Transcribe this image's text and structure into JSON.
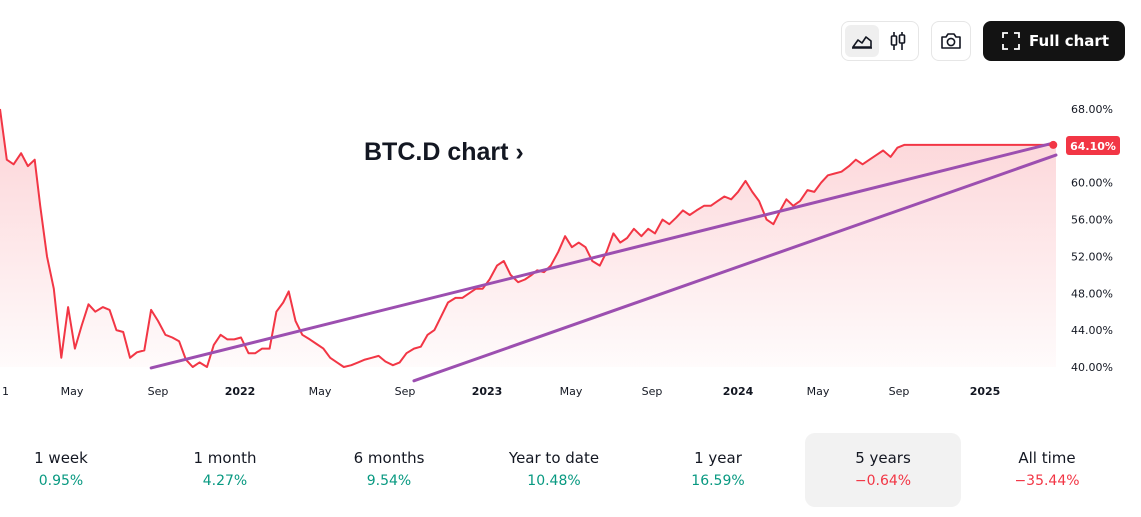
{
  "toolbar": {
    "line_icon": "area-chart-icon",
    "candle_icon": "candlestick-icon",
    "camera_icon": "camera-icon",
    "fullscreen_icon": "fullscreen-icon",
    "full_chart_label": "Full chart"
  },
  "chart_title": "BTC.D chart ›",
  "chart_data": {
    "type": "area",
    "symbol": "BTC.D",
    "title": "",
    "xlabel": "",
    "ylabel": "",
    "unit": "%",
    "x_ticks": [
      "1",
      "May",
      "Sep",
      "2022",
      "May",
      "Sep",
      "2023",
      "May",
      "Sep",
      "2024",
      "May",
      "Sep",
      "2025"
    ],
    "y_ticks": [
      "40.00%",
      "44.00%",
      "48.00%",
      "52.00%",
      "56.00%",
      "60.00%",
      "64.00%",
      "68.00%"
    ],
    "ylim": [
      40,
      68
    ],
    "last_value_label": "64.10%",
    "series": [
      {
        "x": [
          "2021-01-01",
          "2021-01-11",
          "2021-01-21",
          "2021-02-01",
          "2021-02-11",
          "2021-02-21",
          "2021-03-01",
          "2021-03-11",
          "2021-03-21",
          "2021-04-01",
          "2021-04-11",
          "2021-04-21",
          "2021-05-01",
          "2021-05-11",
          "2021-05-21",
          "2021-06-01",
          "2021-06-11",
          "2021-06-21",
          "2021-07-01",
          "2021-07-11",
          "2021-07-21",
          "2021-08-01",
          "2021-08-11",
          "2021-08-21",
          "2021-09-01",
          "2021-09-11",
          "2021-09-21",
          "2021-10-01",
          "2021-10-11",
          "2021-10-21",
          "2021-11-01",
          "2021-11-11",
          "2021-11-21",
          "2021-12-01",
          "2021-12-11",
          "2021-12-21",
          "2022-01-01",
          "2022-01-11",
          "2022-01-21",
          "2022-02-01",
          "2022-02-11",
          "2022-02-21",
          "2022-03-01",
          "2022-03-11",
          "2022-03-21",
          "2022-04-01",
          "2022-04-11",
          "2022-04-21",
          "2022-05-01",
          "2022-05-11",
          "2022-05-21",
          "2022-06-01",
          "2022-06-11",
          "2022-06-21",
          "2022-07-01",
          "2022-07-11",
          "2022-07-21",
          "2022-08-01",
          "2022-08-11",
          "2022-08-21",
          "2022-09-01",
          "2022-09-11",
          "2022-09-21",
          "2022-10-01",
          "2022-10-11",
          "2022-10-21",
          "2022-11-01",
          "2022-11-11",
          "2022-11-21",
          "2022-12-01",
          "2022-12-11",
          "2022-12-21",
          "2023-01-01",
          "2023-01-11",
          "2023-01-21",
          "2023-02-01",
          "2023-02-11",
          "2023-02-21",
          "2023-03-01",
          "2023-03-11",
          "2023-03-21",
          "2023-04-01",
          "2023-04-11",
          "2023-04-21",
          "2023-05-01",
          "2023-05-11",
          "2023-05-21",
          "2023-06-01",
          "2023-06-11",
          "2023-06-21",
          "2023-07-01",
          "2023-07-11",
          "2023-07-21",
          "2023-08-01",
          "2023-08-11",
          "2023-08-21",
          "2023-09-01",
          "2023-09-11",
          "2023-09-21",
          "2023-10-01",
          "2023-10-11",
          "2023-10-21",
          "2023-11-01",
          "2023-11-11",
          "2023-11-21",
          "2023-12-01",
          "2023-12-11",
          "2023-12-21",
          "2024-01-01",
          "2024-01-11",
          "2024-01-21",
          "2024-02-01",
          "2024-02-11",
          "2024-02-21",
          "2024-03-01",
          "2024-03-11",
          "2024-03-21",
          "2024-04-01",
          "2024-04-11",
          "2024-04-21",
          "2024-05-01",
          "2024-05-11",
          "2024-05-21",
          "2024-06-01",
          "2024-06-11",
          "2024-06-21",
          "2024-07-01",
          "2024-07-11",
          "2024-07-21",
          "2024-08-01",
          "2024-08-11",
          "2024-08-21",
          "2024-09-01",
          "2024-09-11",
          "2024-09-21",
          "2024-10-01",
          "2024-10-11",
          "2024-10-21",
          "2024-11-01",
          "2024-11-11",
          "2024-11-21",
          "2024-12-01",
          "2024-12-11",
          "2024-12-21",
          "2025-01-01",
          "2025-01-11",
          "2025-01-21",
          "2025-02-01",
          "2025-02-11",
          "2025-02-21",
          "2025-03-01",
          "2025-03-11",
          "2025-03-21",
          "2025-04-01"
        ],
        "values": [
          68.0,
          62.5,
          62.0,
          63.2,
          61.8,
          62.5,
          57.5,
          52.0,
          48.5,
          41.0,
          46.5,
          42.0,
          44.5,
          46.8,
          46.0,
          46.5,
          46.2,
          44.0,
          43.8,
          41.0,
          41.6,
          41.8,
          46.2,
          45.0,
          43.5,
          43.2,
          42.8,
          40.8,
          40.0,
          40.5,
          40.0,
          42.4,
          43.5,
          43.0,
          43.0,
          43.2,
          41.5,
          41.5,
          42.0,
          42.0,
          46.0,
          47.0,
          48.2,
          45.0,
          43.5,
          43.0,
          42.5,
          42.0,
          41.0,
          40.5,
          40.0,
          40.2,
          40.5,
          40.8,
          41.0,
          41.2,
          40.6,
          40.2,
          40.5,
          41.5,
          42.0,
          42.2,
          43.5,
          44.0,
          45.5,
          47.0,
          47.5,
          47.5,
          48.0,
          48.5,
          48.5,
          49.5,
          51.0,
          51.5,
          50.0,
          49.2,
          49.5,
          50.0,
          50.5,
          50.3,
          51.0,
          52.5,
          54.2,
          53.0,
          53.5,
          53.0,
          51.5,
          51.0,
          52.5,
          54.5,
          53.5,
          54.0,
          55.0,
          54.2,
          55.0,
          54.5,
          56.0,
          55.5,
          56.2,
          57.0,
          56.5,
          57.0,
          57.5,
          57.5,
          58.0,
          58.5,
          58.2,
          59.0,
          60.2,
          59.0,
          58.0,
          56.0,
          55.5,
          57.0,
          58.2,
          57.5,
          58.0,
          59.2,
          59.0,
          60.0,
          60.8,
          61.0,
          61.2,
          61.8,
          62.5,
          62.0,
          62.5,
          63.0,
          63.5,
          62.8,
          63.8,
          64.1,
          64.1,
          64.1,
          64.1,
          64.1,
          64.1,
          64.1,
          64.1,
          64.1,
          64.1,
          64.1,
          64.1,
          64.1,
          64.1,
          64.1,
          64.1,
          64.1,
          64.1,
          64.1,
          64.1,
          64.1,
          64.1,
          64.1
        ]
      }
    ],
    "trendlines": [
      {
        "from": [
          "2021-08-11",
          39.9
        ],
        "to": [
          "2025-03-28",
          64.3
        ]
      },
      {
        "from": [
          "2022-09-01",
          38.5
        ],
        "to": [
          "2025-04-01",
          63.0
        ]
      }
    ],
    "line_color": "#f23645",
    "trendline_color": "#9c4fb0"
  },
  "periods": [
    {
      "label": "1 week",
      "value": "0.95%",
      "sign": "pos"
    },
    {
      "label": "1 month",
      "value": "4.27%",
      "sign": "pos"
    },
    {
      "label": "6 months",
      "value": "9.54%",
      "sign": "pos"
    },
    {
      "label": "Year to date",
      "value": "10.48%",
      "sign": "pos"
    },
    {
      "label": "1 year",
      "value": "16.59%",
      "sign": "pos"
    },
    {
      "label": "5 years",
      "value": "−0.64%",
      "sign": "neg",
      "active": true
    },
    {
      "label": "All time",
      "value": "−35.44%",
      "sign": "neg"
    }
  ]
}
